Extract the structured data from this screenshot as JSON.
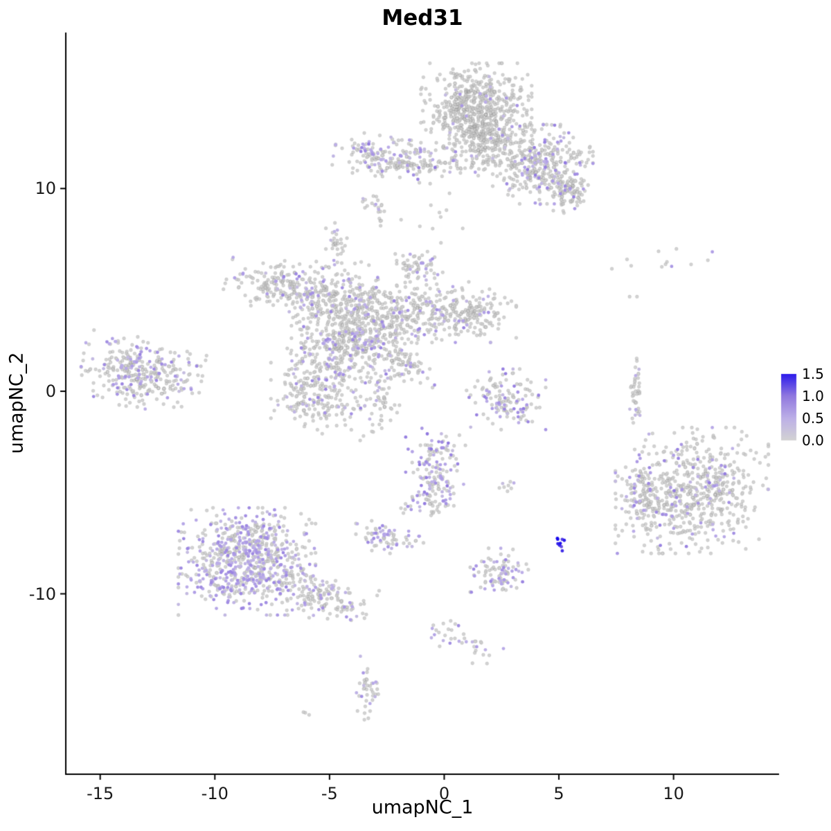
{
  "figure": {
    "background": "#FFFFFF"
  },
  "chart_data": {
    "type": "scatter",
    "title": "Med31",
    "xlabel": "umapNC_1",
    "ylabel": "umapNC_2",
    "xlim": [
      -16.5,
      14.6
    ],
    "ylim": [
      -18.9,
      17.7
    ],
    "x_ticks": [
      -15,
      -10,
      -5,
      0,
      5,
      10
    ],
    "x_tick_labels": [
      "-15",
      "-10",
      "-5",
      "0",
      "5",
      "10"
    ],
    "y_ticks": [
      -10,
      0,
      10
    ],
    "y_tick_labels": [
      "-10",
      "0",
      "10"
    ],
    "grid": false,
    "axis_color": "#000000",
    "tick_text_color": "#1a1a1a",
    "point_color_zero": "#D3D3D3",
    "color_stops": [
      "#D3D3D3",
      "#BCAEE8",
      "#8A70DE",
      "#1607EE"
    ],
    "value_max": 1.6,
    "point_radius": 2.4,
    "seed": 7,
    "legend": {
      "position": "right",
      "min": 0.0,
      "max": 1.5,
      "values": [
        1.5,
        1.0,
        0.5,
        0.0
      ],
      "labels": [
        "1.5",
        "1.0",
        "0.5",
        "0.0"
      ]
    },
    "cluster_fields": [
      "n",
      "cx",
      "cy",
      "sx",
      "sy",
      "expr_frac",
      "expr_min",
      "expr_max",
      "rot_deg"
    ],
    "clusters": [
      [
        550,
        1.4,
        14.0,
        1.05,
        0.95,
        0.04,
        0.3,
        0.8,
        0
      ],
      [
        200,
        1.9,
        12.4,
        0.85,
        0.55,
        0.06,
        0.3,
        0.8,
        0
      ],
      [
        330,
        4.3,
        11.2,
        0.95,
        0.85,
        0.18,
        0.3,
        1.0,
        0
      ],
      [
        90,
        5.3,
        9.8,
        0.5,
        0.5,
        0.22,
        0.3,
        1.0,
        0
      ],
      [
        170,
        -2.4,
        11.5,
        1.05,
        0.45,
        0.22,
        0.3,
        1.0,
        -10
      ],
      [
        90,
        0.3,
        11.2,
        1.5,
        0.3,
        0.08,
        0.3,
        0.8,
        0
      ],
      [
        14,
        -2.9,
        8.8,
        0.15,
        0.45,
        0.25,
        0.3,
        0.7,
        0
      ],
      [
        8,
        -3.1,
        9.1,
        0.3,
        0.35,
        0.2,
        0.3,
        0.7,
        0
      ],
      [
        170,
        -7.2,
        5.2,
        1.0,
        0.55,
        0.14,
        0.3,
        0.9,
        -15
      ],
      [
        260,
        -4.6,
        4.6,
        1.1,
        0.8,
        0.14,
        0.3,
        0.9,
        0
      ],
      [
        430,
        -3.9,
        2.6,
        1.2,
        1.0,
        0.15,
        0.3,
        0.9,
        0
      ],
      [
        260,
        -5.6,
        0.1,
        0.85,
        1.1,
        0.15,
        0.3,
        0.9,
        0
      ],
      [
        260,
        -1.2,
        3.9,
        1.4,
        0.65,
        0.12,
        0.3,
        0.9,
        0
      ],
      [
        130,
        1.3,
        3.9,
        0.8,
        0.55,
        0.12,
        0.3,
        0.9,
        0
      ],
      [
        70,
        -1.9,
        1.4,
        0.8,
        0.3,
        0.1,
        0.3,
        0.8,
        -35
      ],
      [
        60,
        -1.1,
        6.1,
        0.45,
        0.45,
        0.15,
        0.3,
        0.8,
        0
      ],
      [
        30,
        -4.7,
        7.2,
        0.2,
        0.5,
        0.2,
        0.3,
        0.8,
        0
      ],
      [
        340,
        -13.2,
        0.9,
        1.15,
        0.75,
        0.25,
        0.3,
        0.9,
        -10
      ],
      [
        130,
        2.7,
        -0.4,
        0.75,
        0.65,
        0.3,
        0.3,
        1.0,
        0
      ],
      [
        40,
        8.35,
        -0.1,
        0.13,
        0.8,
        0.1,
        0.3,
        0.7,
        0
      ],
      [
        600,
        10.8,
        -4.9,
        1.45,
        1.35,
        0.13,
        0.3,
        1.0,
        0
      ],
      [
        90,
        8.7,
        -5.5,
        0.45,
        0.95,
        0.2,
        0.3,
        0.9,
        0
      ],
      [
        720,
        -8.6,
        -8.4,
        1.3,
        1.15,
        0.45,
        0.3,
        0.9,
        0
      ],
      [
        160,
        -5.5,
        -10.1,
        1.05,
        0.5,
        0.2,
        0.3,
        0.8,
        -20
      ],
      [
        60,
        -2.7,
        -7.2,
        0.5,
        0.35,
        0.5,
        0.3,
        0.9,
        0
      ],
      [
        10,
        -1.4,
        -7.5,
        0.4,
        0.15,
        0.3,
        0.3,
        0.7,
        0
      ],
      [
        150,
        -0.3,
        -3.9,
        0.6,
        0.9,
        0.4,
        0.3,
        1.0,
        0
      ],
      [
        25,
        -0.9,
        -5.6,
        0.45,
        0.3,
        0.3,
        0.3,
        0.8,
        0
      ],
      [
        8,
        2.8,
        -4.7,
        0.25,
        0.2,
        0.3,
        0.3,
        0.6,
        0
      ],
      [
        90,
        2.4,
        -8.9,
        0.55,
        0.5,
        0.35,
        0.3,
        0.9,
        0
      ],
      [
        9,
        5.05,
        -7.45,
        0.1,
        0.22,
        1.0,
        1.2,
        1.6,
        0
      ],
      [
        16,
        0.0,
        -11.9,
        0.35,
        0.3,
        0.35,
        0.3,
        0.8,
        0
      ],
      [
        22,
        1.2,
        -12.6,
        0.8,
        0.35,
        0.3,
        0.3,
        0.7,
        -25
      ],
      [
        40,
        -3.4,
        -14.6,
        0.25,
        0.7,
        0.3,
        0.3,
        0.8,
        0
      ],
      [
        3,
        -6.1,
        -15.9,
        0.15,
        0.1,
        0.0,
        0.0,
        0.0,
        0
      ],
      [
        12,
        8.7,
        6.4,
        1.3,
        0.3,
        0.1,
        0.4,
        0.8,
        0
      ],
      [
        2,
        8.2,
        4.7,
        0.1,
        0.1,
        0.0,
        0.0,
        0.0,
        0
      ],
      [
        60,
        -2.9,
        -0.6,
        0.5,
        0.7,
        0.12,
        0.3,
        0.8,
        0
      ],
      [
        10,
        -0.5,
        8.5,
        0.6,
        0.7,
        0.1,
        0.3,
        0.6,
        0
      ]
    ]
  }
}
